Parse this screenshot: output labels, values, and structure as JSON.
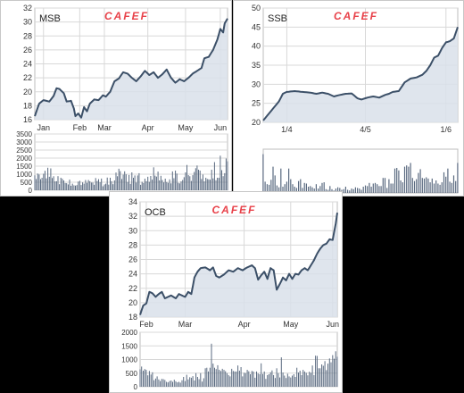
{
  "colors": {
    "line": "#3c5068",
    "area": "#d9e0ea",
    "bar": "#5a6a80",
    "grid": "#d8d8d8",
    "logo": "#e8424a"
  },
  "chart_data": [
    {
      "id": "msb",
      "type": "area",
      "title": "MSB",
      "logo": "CAFEF",
      "ylim": [
        16,
        32
      ],
      "yticks": [
        16,
        18,
        20,
        22,
        24,
        26,
        28,
        30,
        32
      ],
      "xticks": [
        {
          "label": "Jan",
          "i": 6
        },
        {
          "label": "Feb",
          "i": 31
        },
        {
          "label": "Mar",
          "i": 48
        },
        {
          "label": "Apr",
          "i": 78
        },
        {
          "label": "May",
          "i": 104
        },
        {
          "label": "Jun",
          "i": 128
        }
      ],
      "n": 134,
      "price_points": [
        [
          0,
          16.5
        ],
        [
          3,
          18.3
        ],
        [
          6,
          18.8
        ],
        [
          10,
          18.6
        ],
        [
          13,
          19.4
        ],
        [
          15,
          20.5
        ],
        [
          17,
          20.4
        ],
        [
          20,
          19.8
        ],
        [
          22,
          18.6
        ],
        [
          25,
          18.7
        ],
        [
          27,
          17.6
        ],
        [
          28,
          16.5
        ],
        [
          30,
          16.9
        ],
        [
          32,
          16.3
        ],
        [
          34,
          17.8
        ],
        [
          36,
          17.2
        ],
        [
          38,
          18.3
        ],
        [
          41,
          18.9
        ],
        [
          44,
          18.8
        ],
        [
          47,
          19.5
        ],
        [
          49,
          19.3
        ],
        [
          52,
          20.0
        ],
        [
          55,
          21.5
        ],
        [
          58,
          21.9
        ],
        [
          61,
          22.8
        ],
        [
          64,
          22.6
        ],
        [
          67,
          22.0
        ],
        [
          70,
          21.5
        ],
        [
          73,
          22.2
        ],
        [
          76,
          23.0
        ],
        [
          79,
          22.4
        ],
        [
          82,
          22.8
        ],
        [
          85,
          22.0
        ],
        [
          88,
          22.5
        ],
        [
          91,
          23.2
        ],
        [
          94,
          22.0
        ],
        [
          97,
          21.3
        ],
        [
          100,
          21.8
        ],
        [
          103,
          21.5
        ],
        [
          106,
          22.0
        ],
        [
          109,
          22.6
        ],
        [
          112,
          23.0
        ],
        [
          115,
          23.4
        ],
        [
          117,
          24.8
        ],
        [
          120,
          25.0
        ],
        [
          123,
          26.0
        ],
        [
          126,
          27.5
        ],
        [
          128,
          29.0
        ],
        [
          130,
          28.5
        ],
        [
          131,
          29.8
        ],
        [
          133,
          30.5
        ]
      ],
      "vol_ylim": [
        0,
        3500
      ],
      "vol_yticks": [
        0,
        500,
        1000,
        1500,
        2000,
        2500,
        3000,
        3500
      ],
      "volumes": [
        930,
        700,
        1040,
        980,
        690,
        780,
        1030,
        1210,
        740,
        1400,
        840,
        1360,
        760,
        870,
        550,
        560,
        880,
        380,
        780,
        710,
        610,
        450,
        440,
        360,
        660,
        280,
        410,
        310,
        290,
        320,
        540,
        590,
        330,
        490,
        410,
        640,
        460,
        640,
        560,
        480,
        480,
        340,
        760,
        570,
        690,
        500,
        730,
        250,
        360,
        410,
        790,
        350,
        780,
        560,
        380,
        610,
        1100,
        870,
        1340,
        1190,
        700,
        970,
        1180,
        990,
        510,
        950,
        400,
        1110,
        780,
        920,
        480,
        920,
        1060,
        340,
        520,
        450,
        720,
        560,
        840,
        520,
        890,
        660,
        1430,
        910,
        850,
        1160,
        610,
        900,
        640,
        490,
        720,
        510,
        460,
        680,
        430,
        1170,
        750,
        1220,
        1040,
        460,
        430,
        550,
        640,
        810,
        1110,
        1570,
        940,
        870,
        580,
        940,
        1140,
        1370,
        1540,
        1280,
        1220,
        700,
        980,
        550,
        780,
        700,
        680,
        660,
        1280,
        740,
        1750,
        620,
        780,
        770,
        2150,
        1250,
        880,
        1060,
        1970,
        1800
      ]
    },
    {
      "id": "ssb",
      "type": "area",
      "title": "SSB",
      "logo": "CAFEF",
      "ylim": [
        20,
        50
      ],
      "yticks": [
        20,
        25,
        30,
        35,
        40,
        45,
        50
      ],
      "xticks": [
        {
          "label": "1/4",
          "i": 12
        },
        {
          "label": "4/5",
          "i": 52
        },
        {
          "label": "1/6",
          "i": 93
        }
      ],
      "n": 100,
      "price_points": [
        [
          0,
          20.5
        ],
        [
          4,
          23.0
        ],
        [
          8,
          25.5
        ],
        [
          10,
          27.5
        ],
        [
          12,
          28.0
        ],
        [
          16,
          28.2
        ],
        [
          20,
          28.0
        ],
        [
          24,
          27.8
        ],
        [
          27,
          27.5
        ],
        [
          30,
          27.8
        ],
        [
          33,
          27.5
        ],
        [
          36,
          26.8
        ],
        [
          39,
          27.2
        ],
        [
          42,
          27.5
        ],
        [
          45,
          27.6
        ],
        [
          48,
          26.3
        ],
        [
          50,
          26.0
        ],
        [
          53,
          26.5
        ],
        [
          56,
          26.8
        ],
        [
          59,
          26.5
        ],
        [
          62,
          27.2
        ],
        [
          64,
          27.5
        ],
        [
          66,
          28.0
        ],
        [
          69,
          28.2
        ],
        [
          72,
          30.5
        ],
        [
          75,
          31.5
        ],
        [
          78,
          31.8
        ],
        [
          81,
          32.5
        ],
        [
          83,
          33.5
        ],
        [
          85,
          35.0
        ],
        [
          87,
          37.0
        ],
        [
          89,
          37.5
        ],
        [
          91,
          39.5
        ],
        [
          93,
          41.0
        ],
        [
          95,
          41.3
        ],
        [
          97,
          42.0
        ],
        [
          99,
          45.0
        ]
      ],
      "vol_ylim": [
        0,
        700
      ],
      "vol_yticks": [],
      "volumes": [
        620,
        180,
        140,
        130,
        210,
        420,
        280,
        120,
        90,
        390,
        100,
        140,
        180,
        390,
        220,
        140,
        100,
        80,
        190,
        220,
        80,
        160,
        150,
        100,
        110,
        90,
        70,
        140,
        70,
        110,
        160,
        170,
        60,
        50,
        110,
        60,
        40,
        70,
        90,
        80,
        50,
        60,
        100,
        50,
        40,
        70,
        60,
        90,
        80,
        70,
        50,
        100,
        120,
        110,
        160,
        100,
        150,
        160,
        140,
        110,
        110,
        240,
        240,
        80,
        220,
        150,
        150,
        390,
        400,
        360,
        200,
        170,
        420,
        440,
        420,
        480,
        240,
        190,
        220,
        320,
        380,
        240,
        230,
        250,
        230,
        170,
        230,
        150,
        200,
        150,
        130,
        170,
        330,
        260,
        390,
        180,
        160,
        280,
        190,
        480
      ]
    },
    {
      "id": "ocb",
      "type": "area",
      "title": "OCB",
      "logo": "CAFEF",
      "ylim": [
        18,
        34
      ],
      "yticks": [
        18,
        20,
        22,
        24,
        26,
        28,
        30,
        32,
        34
      ],
      "xticks": [
        {
          "label": "Feb",
          "i": 4
        },
        {
          "label": "Mar",
          "i": 29
        },
        {
          "label": "Apr",
          "i": 67
        },
        {
          "label": "May",
          "i": 97
        },
        {
          "label": "Jun",
          "i": 124
        }
      ],
      "n": 128,
      "price_points": [
        [
          0,
          18.3
        ],
        [
          2,
          19.6
        ],
        [
          4,
          19.9
        ],
        [
          6,
          21.5
        ],
        [
          8,
          21.3
        ],
        [
          10,
          20.8
        ],
        [
          12,
          21.2
        ],
        [
          14,
          21.5
        ],
        [
          16,
          20.6
        ],
        [
          18,
          20.8
        ],
        [
          20,
          21.0
        ],
        [
          23,
          20.6
        ],
        [
          25,
          21.2
        ],
        [
          27,
          21.0
        ],
        [
          29,
          20.8
        ],
        [
          31,
          21.5
        ],
        [
          33,
          21.2
        ],
        [
          35,
          23.5
        ],
        [
          37,
          24.3
        ],
        [
          39,
          24.8
        ],
        [
          42,
          24.9
        ],
        [
          45,
          24.5
        ],
        [
          47,
          24.9
        ],
        [
          49,
          23.7
        ],
        [
          51,
          23.5
        ],
        [
          54,
          23.9
        ],
        [
          57,
          24.5
        ],
        [
          60,
          24.3
        ],
        [
          63,
          24.8
        ],
        [
          66,
          24.5
        ],
        [
          69,
          24.9
        ],
        [
          72,
          25.2
        ],
        [
          74,
          24.8
        ],
        [
          76,
          23.2
        ],
        [
          78,
          23.8
        ],
        [
          80,
          24.3
        ],
        [
          82,
          23.3
        ],
        [
          84,
          24.8
        ],
        [
          86,
          24.5
        ],
        [
          88,
          21.8
        ],
        [
          90,
          22.6
        ],
        [
          92,
          23.5
        ],
        [
          94,
          23.1
        ],
        [
          96,
          24.0
        ],
        [
          98,
          23.3
        ],
        [
          100,
          24.0
        ],
        [
          102,
          23.9
        ],
        [
          104,
          24.5
        ],
        [
          106,
          24.8
        ],
        [
          108,
          24.5
        ],
        [
          110,
          25.2
        ],
        [
          112,
          25.9
        ],
        [
          114,
          26.8
        ],
        [
          116,
          27.5
        ],
        [
          118,
          28.0
        ],
        [
          120,
          28.2
        ],
        [
          122,
          28.8
        ],
        [
          124,
          28.7
        ],
        [
          126,
          31.0
        ],
        [
          127,
          32.5
        ]
      ],
      "vol_ylim": [
        0,
        2000
      ],
      "vol_yticks": [
        0,
        500,
        1000,
        1500,
        2000
      ],
      "volumes": [
        640,
        740,
        590,
        650,
        620,
        420,
        580,
        450,
        530,
        240,
        300,
        380,
        270,
        210,
        290,
        280,
        250,
        180,
        160,
        210,
        230,
        180,
        260,
        200,
        160,
        180,
        150,
        240,
        360,
        210,
        440,
        270,
        350,
        330,
        390,
        230,
        500,
        360,
        280,
        500,
        190,
        310,
        680,
        700,
        560,
        700,
        1580,
        850,
        700,
        650,
        790,
        620,
        580,
        660,
        620,
        570,
        500,
        430,
        380,
        660,
        580,
        560,
        560,
        780,
        590,
        720,
        380,
        510,
        500,
        620,
        570,
        460,
        580,
        560,
        330,
        560,
        490,
        460,
        860,
        470,
        560,
        290,
        430,
        460,
        530,
        600,
        430,
        320,
        680,
        500,
        340,
        1080,
        520,
        410,
        320,
        480,
        380,
        340,
        410,
        460,
        360,
        700,
        520,
        590,
        430,
        620,
        560,
        510,
        420,
        550,
        510,
        780,
        430,
        1140,
        1130,
        680,
        680,
        820,
        770,
        940,
        610,
        850,
        1040,
        900,
        1160,
        1030,
        1300,
        1100
      ]
    }
  ]
}
